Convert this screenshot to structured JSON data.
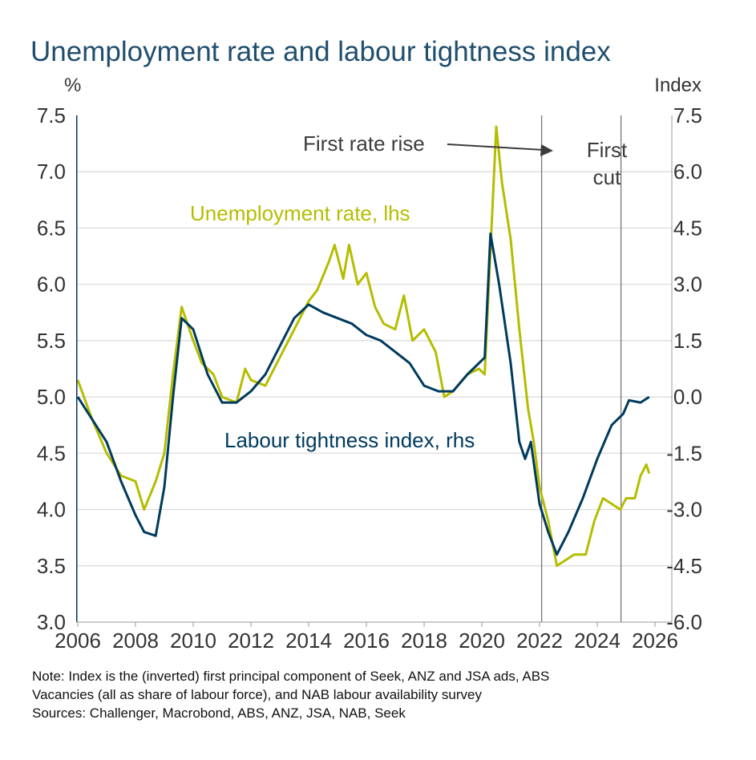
{
  "chart_data": {
    "type": "line",
    "title": "Unemployment rate and labour tightness index",
    "ylabel_left": "%",
    "ylabel_right": "Index",
    "xlim": [
      2006,
      2026.6
    ],
    "ylim_left": [
      3.0,
      7.5
    ],
    "ylim_right": [
      -6.0,
      7.5
    ],
    "grid": true,
    "x_ticks": [
      "2006",
      "2008",
      "2010",
      "2012",
      "2014",
      "2016",
      "2018",
      "2020",
      "2022",
      "2024",
      "2026"
    ],
    "y_ticks_left": [
      "7.5",
      "7.0",
      "6.5",
      "6.0",
      "5.5",
      "5.0",
      "4.5",
      "4.0",
      "3.5",
      "3.0"
    ],
    "y_ticks_right": [
      "7.5",
      "6.0",
      "4.5",
      "3.0",
      "1.5",
      "0.0",
      "-1.5",
      "-3.0",
      "-4.5",
      "-6.0"
    ],
    "colors": {
      "unemployment": "#b5bd00",
      "index": "#003a5d",
      "title": "#1f4e6e",
      "annotation": "#3c3c3c"
    },
    "series": [
      {
        "name": "Unemployment rate, lhs",
        "axis": "left",
        "x": [
          2006.0,
          2006.5,
          2007.0,
          2007.5,
          2008.0,
          2008.3,
          2008.7,
          2009.0,
          2009.3,
          2009.6,
          2010.0,
          2010.3,
          2010.7,
          2011.0,
          2011.5,
          2011.8,
          2012.0,
          2012.5,
          2012.9,
          2013.3,
          2013.7,
          2014.0,
          2014.3,
          2014.7,
          2014.9,
          2015.2,
          2015.4,
          2015.7,
          2016.0,
          2016.3,
          2016.6,
          2017.0,
          2017.3,
          2017.6,
          2018.0,
          2018.4,
          2018.7,
          2019.0,
          2019.5,
          2019.9,
          2020.1,
          2020.3,
          2020.5,
          2020.7,
          2021.0,
          2021.3,
          2021.6,
          2021.8,
          2022.0,
          2022.3,
          2022.6,
          2022.9,
          2023.2,
          2023.6,
          2023.9,
          2024.2,
          2024.5,
          2024.8,
          2025.0,
          2025.3,
          2025.5,
          2025.7,
          2025.8
        ],
        "values": [
          5.15,
          4.8,
          4.5,
          4.3,
          4.25,
          4.0,
          4.25,
          4.5,
          5.2,
          5.8,
          5.5,
          5.3,
          5.2,
          5.0,
          4.95,
          5.25,
          5.15,
          5.1,
          5.3,
          5.5,
          5.7,
          5.85,
          5.95,
          6.2,
          6.35,
          6.05,
          6.35,
          6.0,
          6.1,
          5.8,
          5.65,
          5.6,
          5.9,
          5.5,
          5.6,
          5.4,
          5.0,
          5.05,
          5.2,
          5.25,
          5.2,
          6.3,
          7.4,
          6.9,
          6.4,
          5.6,
          4.9,
          4.6,
          4.2,
          3.9,
          3.5,
          3.55,
          3.6,
          3.6,
          3.9,
          4.1,
          4.05,
          4.0,
          4.1,
          4.1,
          4.3,
          4.4,
          4.32
        ]
      },
      {
        "name": "Labour tightness index, rhs",
        "axis": "right",
        "x": [
          2006.0,
          2006.5,
          2007.0,
          2007.5,
          2008.0,
          2008.3,
          2008.7,
          2009.0,
          2009.3,
          2009.6,
          2010.0,
          2010.5,
          2011.0,
          2011.5,
          2012.0,
          2012.5,
          2013.0,
          2013.5,
          2014.0,
          2014.5,
          2015.0,
          2015.5,
          2016.0,
          2016.5,
          2017.0,
          2017.5,
          2018.0,
          2018.5,
          2019.0,
          2019.5,
          2019.9,
          2020.1,
          2020.3,
          2020.6,
          2021.0,
          2021.3,
          2021.5,
          2021.7,
          2022.0,
          2022.3,
          2022.6,
          2023.0,
          2023.5,
          2024.0,
          2024.5,
          2024.9,
          2025.1,
          2025.5,
          2025.8
        ],
        "values": [
          0,
          -0.6,
          -1.2,
          -2.25,
          -3.15,
          -3.6,
          -3.7,
          -2.4,
          0,
          2.1,
          1.8,
          0.6,
          -0.15,
          -0.15,
          0.15,
          0.6,
          1.35,
          2.1,
          2.46,
          2.25,
          2.1,
          1.95,
          1.65,
          1.5,
          1.2,
          0.9,
          0.3,
          0.15,
          0.15,
          0.6,
          0.9,
          1.05,
          4.35,
          3.0,
          0.9,
          -1.2,
          -1.65,
          -1.2,
          -2.85,
          -3.6,
          -4.2,
          -3.6,
          -2.7,
          -1.65,
          -0.75,
          -0.45,
          -0.09,
          -0.15,
          0
        ]
      }
    ],
    "vlines": [
      {
        "x": 2022.35
      },
      {
        "x": 2025.1
      }
    ],
    "annotations": {
      "rate_rise": "First rate rise",
      "first_cut_1": "First",
      "first_cut_2": "cut",
      "unemployment_label": "Unemployment rate, lhs",
      "index_label": "Labour tightness index, rhs"
    },
    "note_lines": [
      "Note: Index is the (inverted) first principal component of Seek, ANZ and JSA ads, ABS",
      "Vacancies (all as share of labour force), and NAB labour availability survey",
      "Sources: Challenger, Macrobond, ABS, ANZ, JSA, NAB, Seek"
    ]
  }
}
